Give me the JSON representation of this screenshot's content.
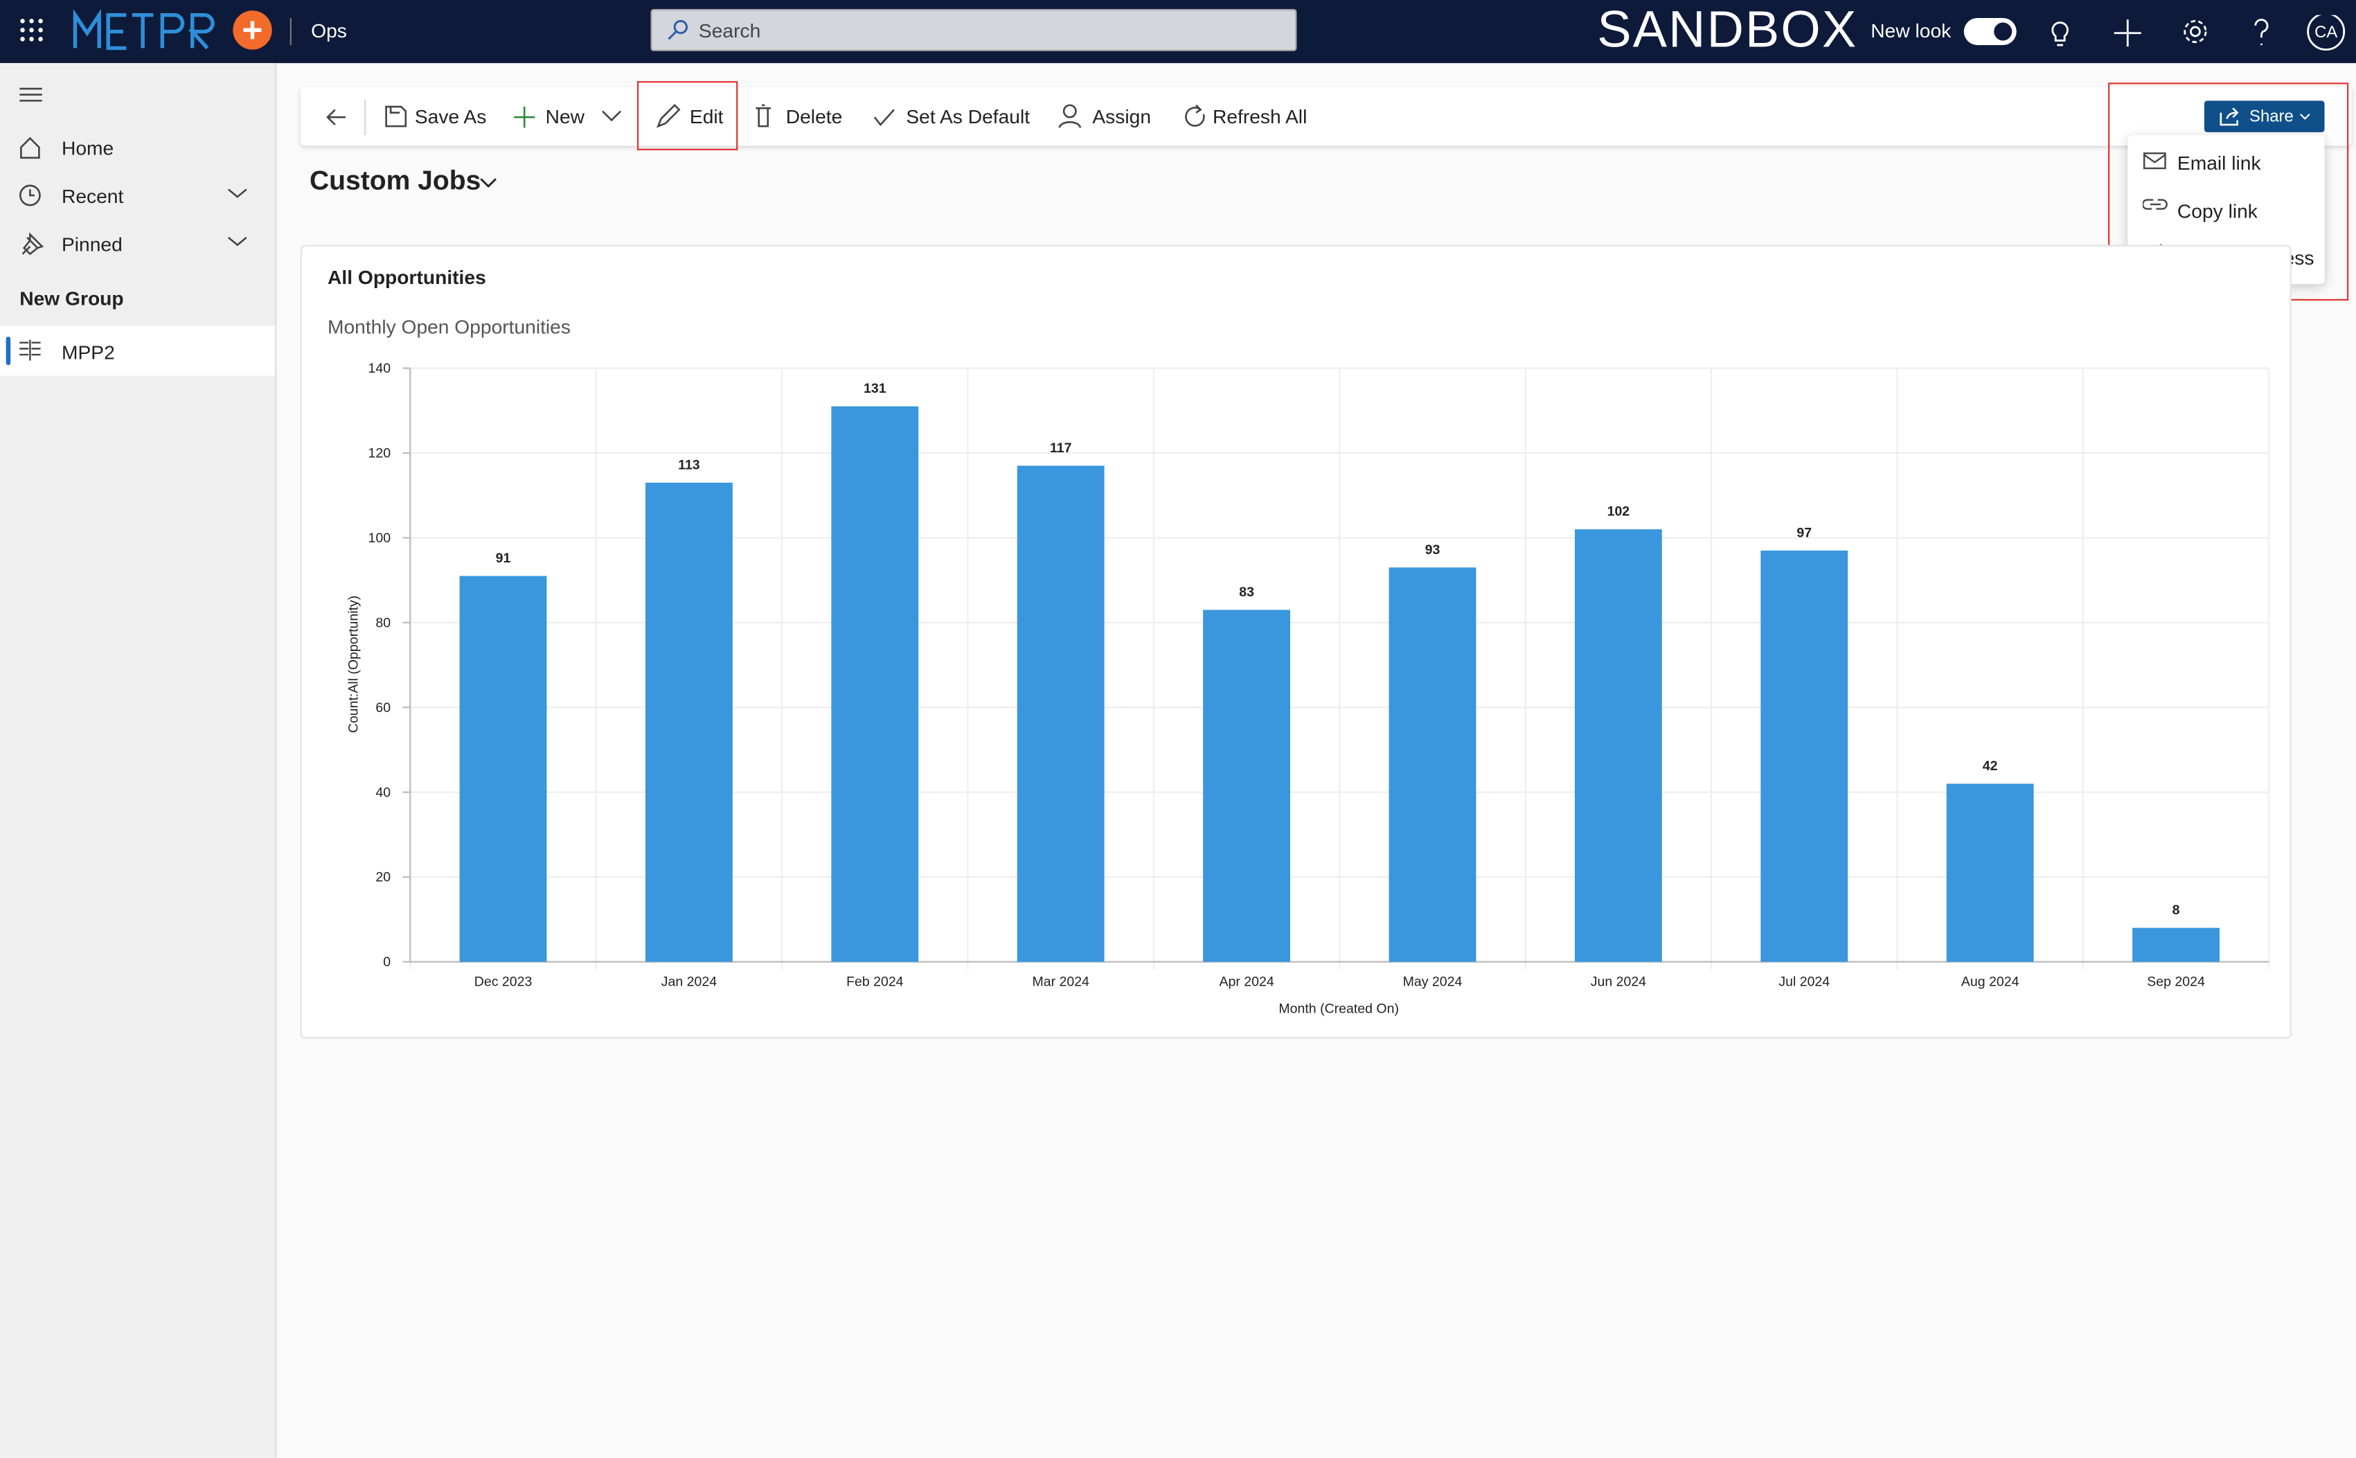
{
  "header": {
    "app_area": "Ops",
    "search_placeholder": "Search",
    "environment": "SANDBOX",
    "new_look": "New look",
    "avatar": "CA"
  },
  "sidebar": {
    "items": [
      "Home",
      "Recent",
      "Pinned"
    ],
    "group": "New Group",
    "group_items": [
      "MPP2"
    ]
  },
  "toolbar": {
    "items": [
      "Save As",
      "New",
      "Edit",
      "Delete",
      "Set As Default",
      "Assign",
      "Refresh All"
    ],
    "share": "Share"
  },
  "share_menu": {
    "items": [
      "Email link",
      "Copy link",
      "Manage access"
    ]
  },
  "view_title": "Custom Jobs",
  "chart_card": {
    "title": "All Opportunities"
  },
  "chart_data": {
    "type": "bar",
    "title": "Monthly Open Opportunities",
    "categories": [
      "Dec 2023",
      "Jan 2024",
      "Feb 2024",
      "Mar 2024",
      "Apr 2024",
      "May 2024",
      "Jun 2024",
      "Jul 2024",
      "Aug 2024",
      "Sep 2024"
    ],
    "values": [
      91,
      113,
      131,
      117,
      83,
      93,
      102,
      97,
      42,
      8
    ],
    "color": "#3a96dd",
    "xlabel": "Month (Created On)",
    "ylabel": "Count:All (Opportunity)",
    "ylim": [
      0,
      140
    ],
    "yticks": [
      0,
      20,
      40,
      60,
      80,
      100,
      120,
      140
    ],
    "grid": true
  }
}
